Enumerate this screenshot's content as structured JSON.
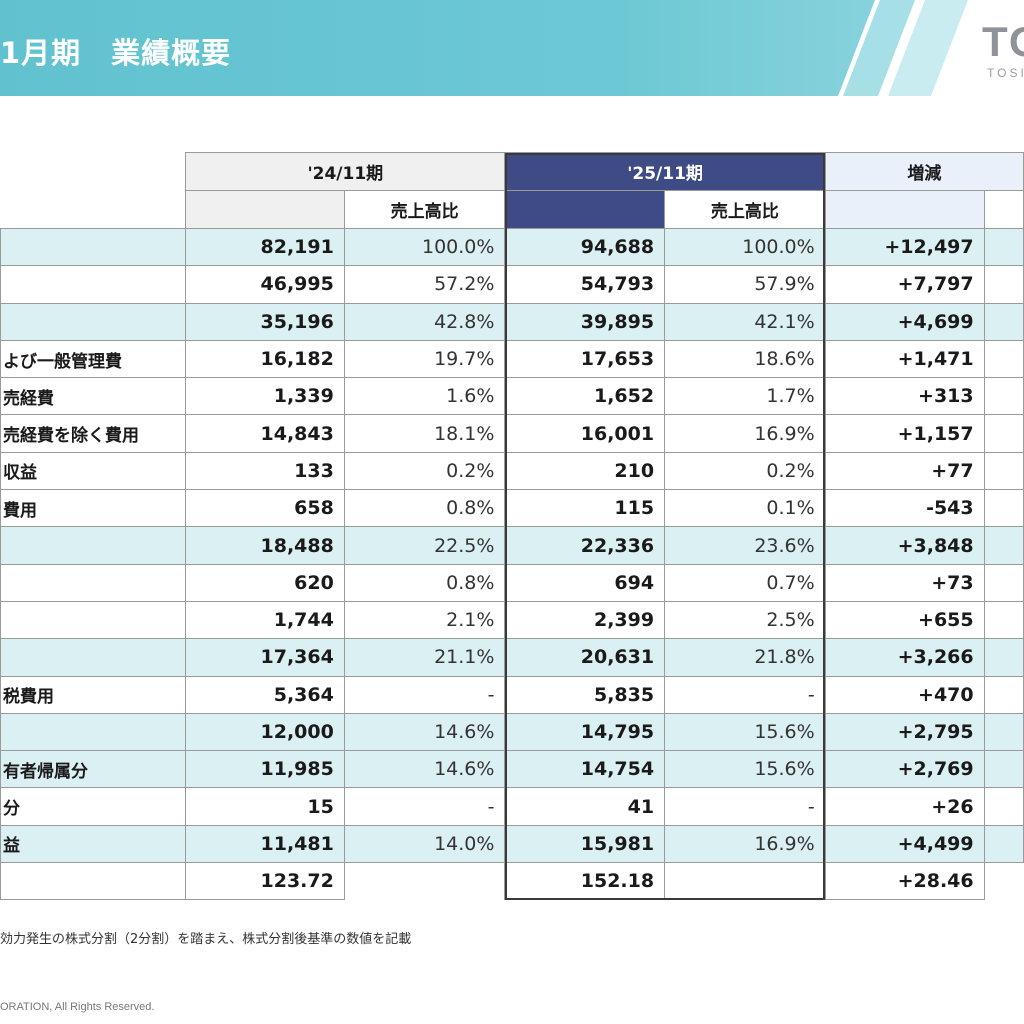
{
  "header": {
    "title": "1月期　業績概要",
    "logo": "TO",
    "logo_sub": "TOSI"
  },
  "table": {
    "group_headers": {
      "y2024": "'24/11期",
      "y2025": "'25/11期",
      "diff": "増減"
    },
    "ratio_header": "売上高比",
    "rows": [
      {
        "label": "",
        "v24": "82,191",
        "r24": "100.0%",
        "v25": "94,688",
        "r25": "100.0%",
        "diff": "+12,497",
        "hl": true
      },
      {
        "label": "",
        "v24": "46,995",
        "r24": "57.2%",
        "v25": "54,793",
        "r25": "57.9%",
        "diff": "+7,797",
        "hl": false
      },
      {
        "label": "",
        "v24": "35,196",
        "r24": "42.8%",
        "v25": "39,895",
        "r25": "42.1%",
        "diff": "+4,699",
        "hl": true
      },
      {
        "label": "よび一般管理費",
        "v24": "16,182",
        "r24": "19.7%",
        "v25": "17,653",
        "r25": "18.6%",
        "diff": "+1,471",
        "hl": false
      },
      {
        "label": "売経費",
        "v24": "1,339",
        "r24": "1.6%",
        "v25": "1,652",
        "r25": "1.7%",
        "diff": "+313",
        "hl": false
      },
      {
        "label": "売経費を除く費用",
        "v24": "14,843",
        "r24": "18.1%",
        "v25": "16,001",
        "r25": "16.9%",
        "diff": "+1,157",
        "hl": false
      },
      {
        "label": "収益",
        "v24": "133",
        "r24": "0.2%",
        "v25": "210",
        "r25": "0.2%",
        "diff": "+77",
        "hl": false
      },
      {
        "label": "費用",
        "v24": "658",
        "r24": "0.8%",
        "v25": "115",
        "r25": "0.1%",
        "diff": "-543",
        "hl": false
      },
      {
        "label": "",
        "v24": "18,488",
        "r24": "22.5%",
        "v25": "22,336",
        "r25": "23.6%",
        "diff": "+3,848",
        "hl": true
      },
      {
        "label": "",
        "v24": "620",
        "r24": "0.8%",
        "v25": "694",
        "r25": "0.7%",
        "diff": "+73",
        "hl": false
      },
      {
        "label": "",
        "v24": "1,744",
        "r24": "2.1%",
        "v25": "2,399",
        "r25": "2.5%",
        "diff": "+655",
        "hl": false
      },
      {
        "label": "",
        "v24": "17,364",
        "r24": "21.1%",
        "v25": "20,631",
        "r25": "21.8%",
        "diff": "+3,266",
        "hl": true
      },
      {
        "label": "税費用",
        "v24": "5,364",
        "r24": "-",
        "v25": "5,835",
        "r25": "-",
        "diff": "+470",
        "hl": false
      },
      {
        "label": "",
        "v24": "12,000",
        "r24": "14.6%",
        "v25": "14,795",
        "r25": "15.6%",
        "diff": "+2,795",
        "hl": true
      },
      {
        "label": "有者帰属分",
        "v24": "11,985",
        "r24": "14.6%",
        "v25": "14,754",
        "r25": "15.6%",
        "diff": "+2,769",
        "hl": true
      },
      {
        "label": "分",
        "v24": "15",
        "r24": "-",
        "v25": "41",
        "r25": "-",
        "diff": "+26",
        "hl": false
      },
      {
        "label": "益",
        "v24": "11,481",
        "r24": "14.0%",
        "v25": "15,981",
        "r25": "16.9%",
        "diff": "+4,499",
        "hl": true
      },
      {
        "label": "",
        "v24": "123.72",
        "r24": "",
        "v25": "152.18",
        "r25": "",
        "diff": "+28.46",
        "hl": false
      }
    ]
  },
  "footnote": "効力発生の株式分割（2分割）を踏まえ、株式分割後基準の数値を記載",
  "copyright": "ORATION, All Rights Reserved."
}
